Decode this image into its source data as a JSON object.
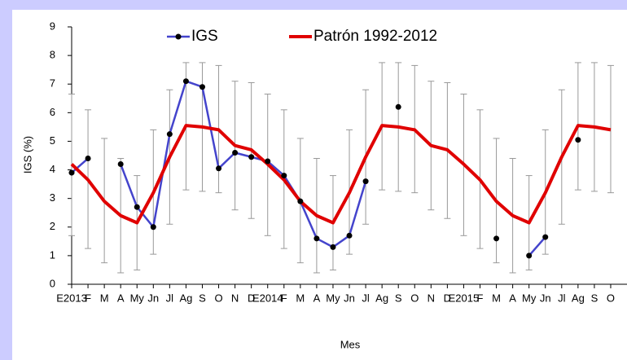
{
  "chart_data": {
    "type": "line",
    "categories": [
      "E2013",
      "F",
      "M",
      "A",
      "My",
      "Jn",
      "Jl",
      "Ag",
      "S",
      "O",
      "N",
      "D",
      "E2014",
      "F",
      "M",
      "A",
      "My",
      "Jn",
      "Jl",
      "Ag",
      "S",
      "O",
      "N",
      "D",
      "E2015",
      "F",
      "M",
      "A",
      "My",
      "Jn",
      "Jl",
      "Ag",
      "S",
      "O"
    ],
    "x_label": "Mes",
    "y_label": "IGS (%)",
    "ylim": [
      0,
      9
    ],
    "yticks": [
      0,
      1,
      2,
      3,
      4,
      5,
      6,
      7,
      8,
      9
    ],
    "series": [
      {
        "name": "IGS",
        "color": "#4444cc",
        "marker_color": "#000000",
        "values": [
          3.9,
          4.4,
          null,
          4.2,
          2.7,
          2.0,
          5.25,
          7.1,
          6.9,
          4.05,
          4.6,
          4.45,
          4.3,
          3.8,
          2.9,
          1.6,
          1.3,
          1.7,
          3.6,
          null,
          6.2,
          null,
          null,
          null,
          null,
          null,
          1.6,
          null,
          1.0,
          1.65,
          null,
          5.05,
          null,
          null
        ]
      },
      {
        "name": "Patrón 1992-2012",
        "color": "#e00000",
        "error_color": "#999999",
        "values": [
          4.2,
          3.65,
          2.9,
          2.4,
          2.15,
          3.2,
          4.45,
          5.55,
          5.5,
          5.4,
          4.85,
          4.7,
          4.2,
          3.65,
          2.9,
          2.4,
          2.15,
          3.2,
          4.45,
          5.55,
          5.5,
          5.4,
          4.85,
          4.7,
          4.2,
          3.65,
          2.9,
          2.4,
          2.15,
          3.2,
          4.45,
          5.55,
          5.5,
          5.4
        ],
        "lower": [
          1.7,
          1.25,
          0.75,
          0.4,
          0.5,
          1.05,
          2.1,
          3.3,
          3.25,
          3.2,
          2.6,
          2.3,
          1.7,
          1.25,
          0.75,
          0.4,
          0.5,
          1.05,
          2.1,
          3.3,
          3.25,
          3.2,
          2.6,
          2.3,
          1.7,
          1.25,
          0.75,
          0.4,
          0.5,
          1.05,
          2.1,
          3.3,
          3.25,
          3.2
        ],
        "upper": [
          6.65,
          6.1,
          5.1,
          4.4,
          3.8,
          5.4,
          6.8,
          7.75,
          7.75,
          7.65,
          7.1,
          7.05,
          6.65,
          6.1,
          5.1,
          4.4,
          3.8,
          5.4,
          6.8,
          7.75,
          7.75,
          7.65,
          7.1,
          7.05,
          6.65,
          6.1,
          5.1,
          4.4,
          3.8,
          5.4,
          6.8,
          7.75,
          7.75,
          7.65
        ]
      }
    ]
  }
}
